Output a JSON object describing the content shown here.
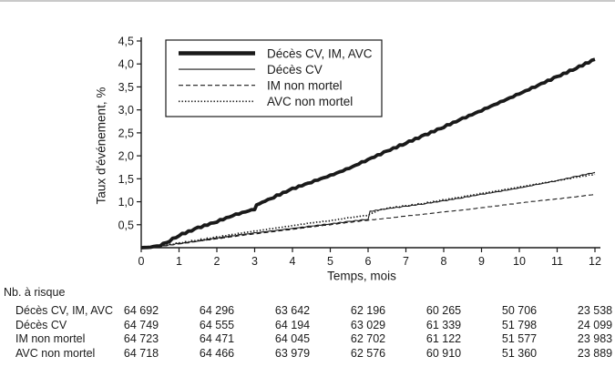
{
  "page": {
    "background": "#ffffff",
    "ink": "#1a1a1a",
    "top_rule_color": "#c9c9c9"
  },
  "chart_data": {
    "type": "line",
    "title": "",
    "xlabel": "Temps, mois",
    "ylabel": "Taux d'événement, %",
    "xlim": [
      0,
      12
    ],
    "ylim": [
      0,
      4.5
    ],
    "grid": "off",
    "legend_position": "top-left-inside",
    "x_ticks": [
      0,
      1,
      2,
      3,
      4,
      5,
      6,
      7,
      8,
      9,
      10,
      11,
      12
    ],
    "y_ticks": [
      {
        "v": 0.5,
        "label": "0,5"
      },
      {
        "v": 1.0,
        "label": "1,0"
      },
      {
        "v": 1.5,
        "label": "1,5"
      },
      {
        "v": 2.0,
        "label": "2,0"
      },
      {
        "v": 2.5,
        "label": "2,5"
      },
      {
        "v": 3.0,
        "label": "3,0"
      },
      {
        "v": 3.5,
        "label": "3,5"
      },
      {
        "v": 4.0,
        "label": "4,0"
      },
      {
        "v": 4.5,
        "label": "4,5"
      }
    ],
    "series": [
      {
        "name": "IM non mortel",
        "style": "dashed",
        "points": [
          [
            0,
            0
          ],
          [
            0.5,
            0.03
          ],
          [
            1,
            0.08
          ],
          [
            1.5,
            0.14
          ],
          [
            2,
            0.19
          ],
          [
            2.5,
            0.25
          ],
          [
            3,
            0.3
          ],
          [
            3.5,
            0.35
          ],
          [
            4,
            0.4
          ],
          [
            4.5,
            0.45
          ],
          [
            5,
            0.5
          ],
          [
            5.5,
            0.55
          ],
          [
            6,
            0.6
          ],
          [
            6.5,
            0.64
          ],
          [
            7,
            0.69
          ],
          [
            7.5,
            0.73
          ],
          [
            8,
            0.78
          ],
          [
            8.5,
            0.82
          ],
          [
            9,
            0.87
          ],
          [
            9.5,
            0.92
          ],
          [
            10,
            0.97
          ],
          [
            10.5,
            1.02
          ],
          [
            11,
            1.06
          ],
          [
            11.5,
            1.11
          ],
          [
            12,
            1.16
          ]
        ]
      },
      {
        "name": "AVC non mortel",
        "style": "dotted",
        "points": [
          [
            0,
            0
          ],
          [
            0.5,
            0.04
          ],
          [
            1,
            0.1
          ],
          [
            1.5,
            0.17
          ],
          [
            2,
            0.23
          ],
          [
            2.5,
            0.3
          ],
          [
            3,
            0.36
          ],
          [
            3.5,
            0.42
          ],
          [
            4,
            0.48
          ],
          [
            4.5,
            0.54
          ],
          [
            5,
            0.59
          ],
          [
            5.5,
            0.65
          ],
          [
            6,
            0.71
          ],
          [
            6.3,
            0.82
          ],
          [
            6.5,
            0.86
          ],
          [
            7,
            0.91
          ],
          [
            7.5,
            0.97
          ],
          [
            8,
            1.04
          ],
          [
            8.5,
            1.11
          ],
          [
            9,
            1.18
          ],
          [
            9.5,
            1.25
          ],
          [
            10,
            1.32
          ],
          [
            10.5,
            1.39
          ],
          [
            11,
            1.46
          ],
          [
            11.5,
            1.53
          ],
          [
            12,
            1.6
          ]
        ]
      },
      {
        "name": "Décès CV",
        "style": "solid-thin",
        "points": [
          [
            0,
            0
          ],
          [
            0.5,
            0.03
          ],
          [
            1,
            0.09
          ],
          [
            1.5,
            0.15
          ],
          [
            2,
            0.21
          ],
          [
            2.5,
            0.27
          ],
          [
            3,
            0.32
          ],
          [
            3.5,
            0.37
          ],
          [
            4,
            0.42
          ],
          [
            4.5,
            0.47
          ],
          [
            5,
            0.52
          ],
          [
            5.5,
            0.57
          ],
          [
            6,
            0.62
          ],
          [
            6.05,
            0.79
          ],
          [
            6.5,
            0.85
          ],
          [
            7,
            0.9
          ],
          [
            7.5,
            0.96
          ],
          [
            8,
            1.02
          ],
          [
            8.5,
            1.09
          ],
          [
            9,
            1.16
          ],
          [
            9.5,
            1.23
          ],
          [
            10,
            1.3
          ],
          [
            10.5,
            1.38
          ],
          [
            11,
            1.46
          ],
          [
            11.5,
            1.55
          ],
          [
            12,
            1.64
          ]
        ]
      },
      {
        "name": "Décès CV, IM, AVC",
        "style": "solid-thick",
        "points": [
          [
            0,
            0
          ],
          [
            0.25,
            0.01
          ],
          [
            0.5,
            0.05
          ],
          [
            0.75,
            0.15
          ],
          [
            1,
            0.27
          ],
          [
            1.5,
            0.43
          ],
          [
            2,
            0.57
          ],
          [
            2.5,
            0.72
          ],
          [
            3,
            0.84
          ],
          [
            3.05,
            0.93
          ],
          [
            3.5,
            1.1
          ],
          [
            4,
            1.28
          ],
          [
            4.5,
            1.43
          ],
          [
            5,
            1.57
          ],
          [
            5.5,
            1.73
          ],
          [
            6,
            1.92
          ],
          [
            6.5,
            2.1
          ],
          [
            7,
            2.28
          ],
          [
            7.5,
            2.45
          ],
          [
            8,
            2.63
          ],
          [
            8.5,
            2.81
          ],
          [
            9,
            2.99
          ],
          [
            9.5,
            3.17
          ],
          [
            10,
            3.35
          ],
          [
            10.5,
            3.54
          ],
          [
            11,
            3.72
          ],
          [
            11.5,
            3.91
          ],
          [
            12,
            4.1
          ]
        ]
      }
    ],
    "legend_entries": [
      {
        "label": "Décès CV, IM, AVC",
        "style": "solid-thick"
      },
      {
        "label": "Décès CV",
        "style": "solid-thin"
      },
      {
        "label": "IM non mortel",
        "style": "dashed"
      },
      {
        "label": "AVC non mortel",
        "style": "dotted"
      }
    ]
  },
  "risk_table": {
    "title": "Nb. à risque",
    "columns_months": [
      0,
      2,
      4,
      6,
      8,
      10,
      12
    ],
    "rows": [
      {
        "label": "Décès CV, IM, AVC",
        "values": [
          "64 692",
          "64 296",
          "63 642",
          "62 196",
          "60 265",
          "50 706",
          "23 538"
        ]
      },
      {
        "label": "Décès CV",
        "values": [
          "64 749",
          "64 555",
          "64 194",
          "63 029",
          "61 339",
          "51 798",
          "24 099"
        ]
      },
      {
        "label": "IM non mortel",
        "values": [
          "64 723",
          "64 471",
          "64 045",
          "62 702",
          "61 122",
          "51 577",
          "23 983"
        ]
      },
      {
        "label": "AVC non mortel",
        "values": [
          "64 718",
          "64 466",
          "63 979",
          "62 576",
          "60 910",
          "51 360",
          "23 889"
        ]
      }
    ]
  }
}
